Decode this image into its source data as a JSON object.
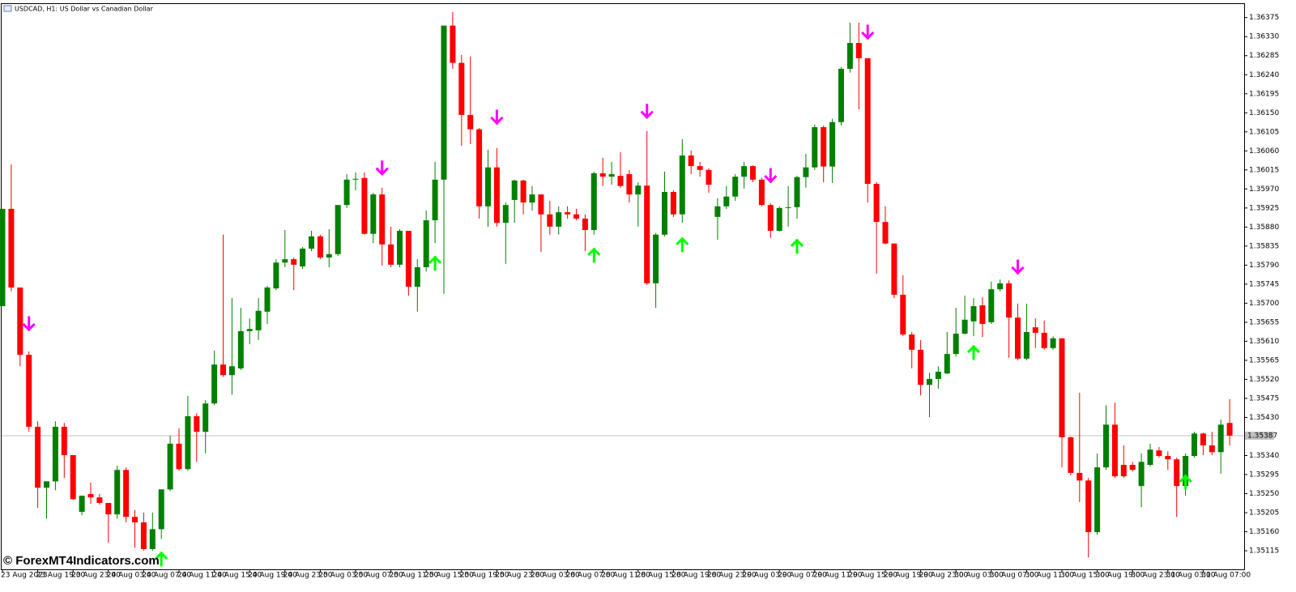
{
  "chart_data": {
    "type": "candlestick",
    "title": "USDCAD, H1:  US Dollar vs Canadian Dollar",
    "watermark": "© ForexMT4Indicators.com",
    "up_color": "#008000",
    "down_color": "#ff0000",
    "ylim": [
      1.35073,
      1.36407
    ],
    "yticks": [
      1.36375,
      {
        "value": 1.3633,
        "label": "1.36330"
      },
      1.36285,
      {
        "value": 1.3624,
        "label": "1.36240"
      },
      1.36195,
      {
        "value": 1.3615,
        "label": "1.36150"
      },
      1.36105,
      {
        "value": 1.3606,
        "label": "1.36060"
      },
      1.36015,
      {
        "value": 1.3597,
        "label": "1.35970"
      },
      1.35925,
      {
        "value": 1.3588,
        "label": "1.35880"
      },
      1.35835,
      {
        "value": 1.3579,
        "label": "1.35790"
      },
      1.35745,
      {
        "value": 1.357,
        "label": "1.35700"
      },
      1.35655,
      {
        "value": 1.3561,
        "label": "1.35610"
      },
      1.35565,
      {
        "value": 1.3552,
        "label": "1.35520"
      },
      1.35475,
      {
        "value": 1.3543,
        "label": "1.35430"
      },
      {
        "value": 1.3534,
        "label": "1.35340"
      },
      1.35295,
      {
        "value": 1.3525,
        "label": "1.35250"
      },
      1.35205,
      {
        "value": 1.3516,
        "label": "1.35160"
      },
      1.35115
    ],
    "categories": [
      "23 Aug 2023",
      null,
      null,
      null,
      "23 Aug 19:00",
      null,
      null,
      null,
      "23 Aug 23:00",
      null,
      null,
      null,
      "24 Aug 03:00",
      null,
      null,
      null,
      "24 Aug 07:00",
      null,
      null,
      null,
      "24 Aug 11:00",
      null,
      null,
      null,
      "24 Aug 15:00",
      null,
      null,
      null,
      "24 Aug 19:00",
      null,
      null,
      null,
      "24 Aug 23:00",
      null,
      null,
      null,
      "25 Aug 03:00",
      null,
      null,
      null,
      "25 Aug 07:00",
      null,
      null,
      null,
      "25 Aug 11:00",
      null,
      null,
      null,
      "25 Aug 15:00",
      null,
      null,
      null,
      "25 Aug 19:00",
      null,
      null,
      null,
      "25 Aug 23:00",
      null,
      null,
      null,
      "28 Aug 03:00",
      null,
      null,
      null,
      "28 Aug 07:00",
      null,
      null,
      null,
      "28 Aug 11:00",
      null,
      null,
      null,
      "28 Aug 15:00",
      null,
      null,
      null,
      "28 Aug 19:00",
      null,
      null,
      null,
      "28 Aug 23:00",
      null,
      null,
      null,
      "29 Aug 03:00",
      null,
      null,
      null,
      "29 Aug 07:00",
      null,
      null,
      null,
      "29 Aug 11:00",
      null,
      null,
      null,
      "29 Aug 15:00",
      null,
      null,
      null,
      "29 Aug 19:00",
      null,
      null,
      null,
      "29 Aug 23:00",
      null,
      null,
      null,
      "30 Aug 03:00",
      null,
      null,
      null,
      "30 Aug 07:00",
      null,
      null,
      null,
      "30 Aug 11:00",
      null,
      null,
      null,
      "30 Aug 15:00",
      null,
      null,
      null,
      "30 Aug 19:00",
      null,
      null,
      null,
      "30 Aug 23:00",
      null,
      null,
      null,
      "31 Aug 03:00",
      null,
      null,
      null,
      "31 Aug 07:00",
      null,
      null,
      null
    ],
    "open": [
      1.35693,
      1.35923,
      1.35737,
      1.35578,
      1.35408,
      1.35264,
      1.35279,
      1.35408,
      1.35341,
      1.35207,
      1.35249,
      1.35241,
      1.35228,
      1.35201,
      1.35306,
      1.35195,
      1.35182,
      1.35119,
      1.35166,
      1.3526,
      1.35368,
      1.35308,
      1.35433,
      1.35396,
      1.35463,
      1.35555,
      1.3553,
      1.35546,
      1.35634,
      1.35636,
      1.3568,
      1.35735,
      1.35796,
      1.35804,
      1.35787,
      1.35829,
      1.35858,
      1.35808,
      1.35816,
      1.35932,
      1.35992,
      1.35996,
      1.35864,
      1.35957,
      1.35839,
      1.35791,
      1.35871,
      1.35739,
      1.35785,
      1.35896,
      1.35992,
      1.36356,
      1.36268,
      1.36145,
      1.36111,
      1.35929,
      1.36021,
      1.3589,
      1.35944,
      1.3599,
      1.35938,
      1.35957,
      1.3591,
      1.35881,
      1.35915,
      1.3591,
      1.359,
      1.35873,
      1.36007,
      1.35999,
      1.36001,
      1.36005,
      1.35957,
      1.35978,
      1.35747,
      1.35862,
      1.35963,
      1.3591,
      1.36049,
      1.36024,
      1.36015,
      1.35904,
      1.35929,
      1.35952,
      1.35999,
      1.36024,
      1.35992,
      1.35932,
      1.35871,
      1.35925,
      1.35927,
      1.35998,
      1.36021,
      1.36116,
      1.36023,
      1.36128,
      1.36254,
      1.36315,
      1.36279,
      1.35982,
      1.35892,
      1.35841,
      1.3572,
      1.35626,
      1.3559,
      1.35507,
      1.35521,
      1.35534,
      1.3558,
      1.35628,
      1.35657,
      1.35695,
      1.35655,
      1.35733,
      1.35747,
      1.35666,
      1.35569,
      1.35643,
      1.3563,
      1.35594,
      1.35617,
      1.35383,
      1.35299,
      1.35281,
      1.35159,
      1.35312,
      1.35413,
      1.35318,
      1.35318,
      1.35268,
      1.35318,
      1.35352,
      1.35339,
      1.35331,
      1.35268,
      1.35339,
      1.35392,
      1.35364,
      1.35348,
      1.35417
    ],
    "high": [
      1.35923,
      1.36028,
      1.35737,
      1.35586,
      1.35421,
      1.35279,
      1.35421,
      1.35417,
      1.35341,
      1.35245,
      1.35276,
      1.35249,
      1.35228,
      1.35316,
      1.35312,
      1.35211,
      1.35205,
      1.35205,
      1.3526,
      1.35387,
      1.35404,
      1.35481,
      1.3544,
      1.35471,
      1.35588,
      1.35862,
      1.35712,
      1.35689,
      1.35664,
      1.35712,
      1.35741,
      1.35804,
      1.35873,
      1.35808,
      1.35833,
      1.35871,
      1.35862,
      1.35875,
      1.35932,
      1.36005,
      1.36009,
      1.36009,
      1.35961,
      1.35973,
      1.35881,
      1.35875,
      1.35871,
      1.35804,
      1.35919,
      1.36034,
      1.36356,
      1.36388,
      1.36287,
      1.36283,
      1.36114,
      1.36063,
      1.36067,
      1.35938,
      1.35992,
      1.35992,
      1.35977,
      1.35957,
      1.35942,
      1.35929,
      1.35929,
      1.35923,
      1.3591,
      1.36011,
      1.36044,
      1.36034,
      1.36057,
      1.36015,
      1.35986,
      1.36107,
      1.35866,
      1.36011,
      1.35967,
      1.36088,
      1.36061,
      1.36034,
      1.36019,
      1.35948,
      1.35977,
      1.36005,
      1.36034,
      1.36026,
      1.35996,
      1.35936,
      1.35929,
      1.35977,
      1.36001,
      1.36053,
      1.36122,
      1.3612,
      1.36136,
      1.36258,
      1.36363,
      1.36363,
      1.36279,
      1.35986,
      1.35929,
      1.35841,
      1.35766,
      1.35632,
      1.35613,
      1.35536,
      1.35551,
      1.35632,
      1.35689,
      1.35718,
      1.35712,
      1.35714,
      1.35751,
      1.35756,
      1.35754,
      1.35699,
      1.35699,
      1.35664,
      1.35659,
      1.35622,
      1.35617,
      1.35385,
      1.35488,
      1.35287,
      1.35345,
      1.35459,
      1.35465,
      1.35364,
      1.35325,
      1.35345,
      1.35368,
      1.3536,
      1.3535,
      1.35335,
      1.35345,
      1.35396,
      1.35394,
      1.35396,
      1.35425,
      1.35473
    ],
    "low": [
      1.35693,
      1.35728,
      1.35551,
      1.35396,
      1.35216,
      1.35191,
      1.35258,
      1.35287,
      1.35235,
      1.35199,
      1.35226,
      1.35224,
      1.35134,
      1.35191,
      1.35182,
      1.35122,
      1.35115,
      1.35115,
      1.35143,
      1.35256,
      1.35304,
      1.35304,
      1.35325,
      1.35345,
      1.35459,
      1.35526,
      1.35484,
      1.35542,
      1.35603,
      1.35613,
      1.35651,
      1.35731,
      1.35785,
      1.35731,
      1.35781,
      1.35823,
      1.35804,
      1.35785,
      1.35812,
      1.35925,
      1.35967,
      1.35862,
      1.35842,
      1.35789,
      1.35785,
      1.35785,
      1.35718,
      1.3568,
      1.35775,
      1.35842,
      1.35722,
      1.36254,
      1.36072,
      1.36076,
      1.359,
      1.35881,
      1.35881,
      1.35793,
      1.3589,
      1.3591,
      1.35919,
      1.35821,
      1.35862,
      1.35862,
      1.359,
      1.35896,
      1.35823,
      1.35862,
      1.35977,
      1.3598,
      1.35973,
      1.35938,
      1.35881,
      1.35743,
      1.35689,
      1.35858,
      1.35904,
      1.3589,
      1.36005,
      1.35999,
      1.35961,
      1.3585,
      1.35923,
      1.35942,
      1.35971,
      1.35986,
      1.35929,
      1.35854,
      1.35869,
      1.35881,
      1.359,
      1.35973,
      1.36015,
      1.35986,
      1.35984,
      1.3612,
      1.36245,
      1.36158,
      1.35938,
      1.3577,
      1.35839,
      1.35712,
      1.35622,
      1.35546,
      1.35482,
      1.35431,
      1.35498,
      1.35532,
      1.35574,
      1.35626,
      1.35622,
      1.3562,
      1.35651,
      1.35728,
      1.35571,
      1.35565,
      1.35565,
      1.35594,
      1.3559,
      1.3559,
      1.35312,
      1.35293,
      1.3523,
      1.35099,
      1.35153,
      1.35306,
      1.35287,
      1.35287,
      1.35302,
      1.35218,
      1.35314,
      1.35335,
      1.35306,
      1.35195,
      1.35245,
      1.35335,
      1.35341,
      1.35341,
      1.35297,
      1.35364
    ],
    "close": [
      1.35923,
      1.35737,
      1.35578,
      1.35408,
      1.35264,
      1.35279,
      1.35408,
      1.35341,
      1.35237,
      1.35245,
      1.35241,
      1.35228,
      1.35201,
      1.35306,
      1.35195,
      1.35182,
      1.35119,
      1.35166,
      1.3526,
      1.35368,
      1.35308,
      1.35433,
      1.35396,
      1.35463,
      1.35555,
      1.3553,
      1.35551,
      1.35634,
      1.35639,
      1.35682,
      1.35737,
      1.35796,
      1.35804,
      1.35791,
      1.35829,
      1.35858,
      1.35808,
      1.35816,
      1.35932,
      1.35992,
      1.35994,
      1.35864,
      1.35957,
      1.35839,
      1.35791,
      1.35871,
      1.35739,
      1.35785,
      1.35896,
      1.35992,
      1.36356,
      1.36268,
      1.36145,
      1.36111,
      1.35929,
      1.36021,
      1.3589,
      1.35932,
      1.3599,
      1.35938,
      1.35957,
      1.3591,
      1.35881,
      1.35915,
      1.3591,
      1.359,
      1.35873,
      1.36007,
      1.35999,
      1.36005,
      1.35977,
      1.35957,
      1.35978,
      1.35747,
      1.35862,
      1.35963,
      1.3591,
      1.36049,
      1.36024,
      1.36015,
      1.3598,
      1.35929,
      1.35952,
      1.35999,
      1.36024,
      1.35992,
      1.35932,
      1.35871,
      1.35925,
      1.35927,
      1.35998,
      1.36021,
      1.36116,
      1.36023,
      1.36128,
      1.36254,
      1.36315,
      1.36279,
      1.35982,
      1.35892,
      1.35841,
      1.3572,
      1.35626,
      1.3559,
      1.35507,
      1.35521,
      1.35538,
      1.3558,
      1.35628,
      1.35661,
      1.35693,
      1.35651,
      1.35733,
      1.35747,
      1.35666,
      1.35569,
      1.35632,
      1.3563,
      1.35594,
      1.35617,
      1.35383,
      1.35299,
      1.35281,
      1.35159,
      1.35312,
      1.35413,
      1.35291,
      1.35291,
      1.35306,
      1.35325,
      1.35354,
      1.35339,
      1.35331,
      1.35268,
      1.35339,
      1.35392,
      1.35364,
      1.35348,
      1.35413,
      1.35387
    ],
    "sell_color": "#ff00ff",
    "buy_color": "#00ff00",
    "sell_signals": [
      {
        "index": 3,
        "price": 1.35651
      },
      {
        "index": 43,
        "price": 1.36019
      },
      {
        "index": 56,
        "price": 1.36139
      },
      {
        "index": 73,
        "price": 1.36153
      },
      {
        "index": 87,
        "price": 1.36001
      },
      {
        "index": 98,
        "price": 1.3634
      },
      {
        "index": 115,
        "price": 1.35785
      }
    ],
    "buy_signals": [
      {
        "index": 18,
        "price": 1.35096
      },
      {
        "index": 49,
        "price": 1.35795
      },
      {
        "index": 67,
        "price": 1.35814
      },
      {
        "index": 77,
        "price": 1.35839
      },
      {
        "index": 90,
        "price": 1.35835
      },
      {
        "index": 110,
        "price": 1.35584
      },
      {
        "index": 134,
        "price": 1.35278
      }
    ]
  }
}
